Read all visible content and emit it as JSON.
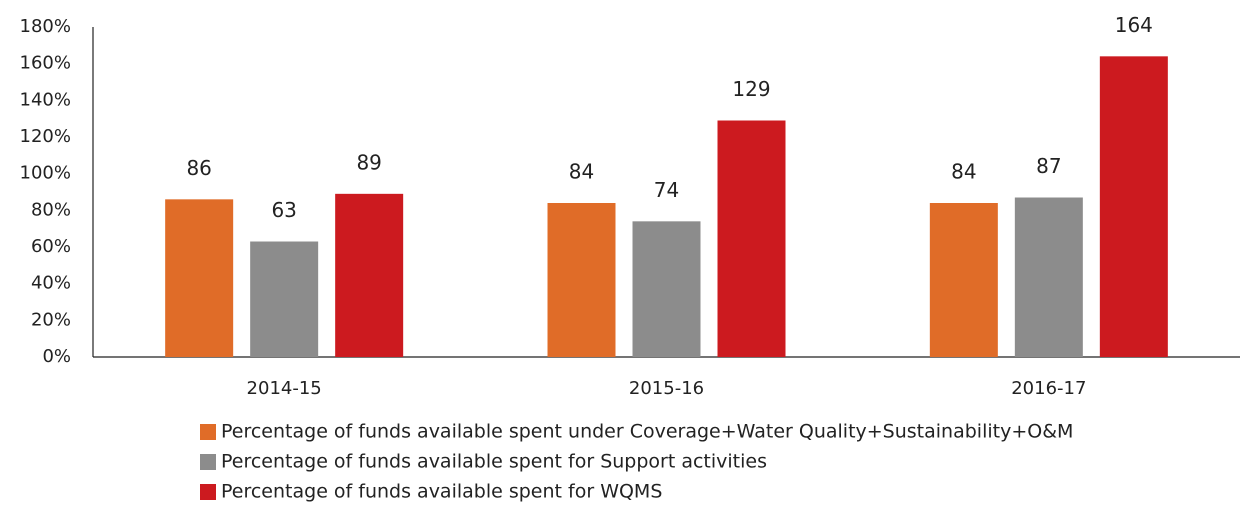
{
  "chart_data": {
    "type": "bar",
    "categories": [
      "2014-15",
      "2015-16",
      "2016-17"
    ],
    "series": [
      {
        "name": "Percentage of funds available spent under Coverage+Water Quality+Sustainability+O&M",
        "color": "#e06c28",
        "values": [
          86,
          84,
          84
        ]
      },
      {
        "name": "Percentage of funds available spent for Support activities",
        "color": "#8c8c8c",
        "values": [
          63,
          74,
          87
        ]
      },
      {
        "name": "Percentage of funds available spent for WQMS",
        "color": "#cc1a1f",
        "values": [
          89,
          129,
          164
        ]
      }
    ],
    "ylim": [
      0,
      180
    ],
    "yticks": [
      {
        "value": 0,
        "label": "0%"
      },
      {
        "value": 20,
        "label": "20%"
      },
      {
        "value": 40,
        "label": "40%"
      },
      {
        "value": 60,
        "label": "60%"
      },
      {
        "value": 80,
        "label": "80%"
      },
      {
        "value": 100,
        "label": "100%"
      },
      {
        "value": 120,
        "label": "120%"
      },
      {
        "value": 140,
        "label": "140%"
      },
      {
        "value": 160,
        "label": "160%"
      },
      {
        "value": 180,
        "label": "180%"
      }
    ],
    "grid": false,
    "legend": "bottom"
  }
}
